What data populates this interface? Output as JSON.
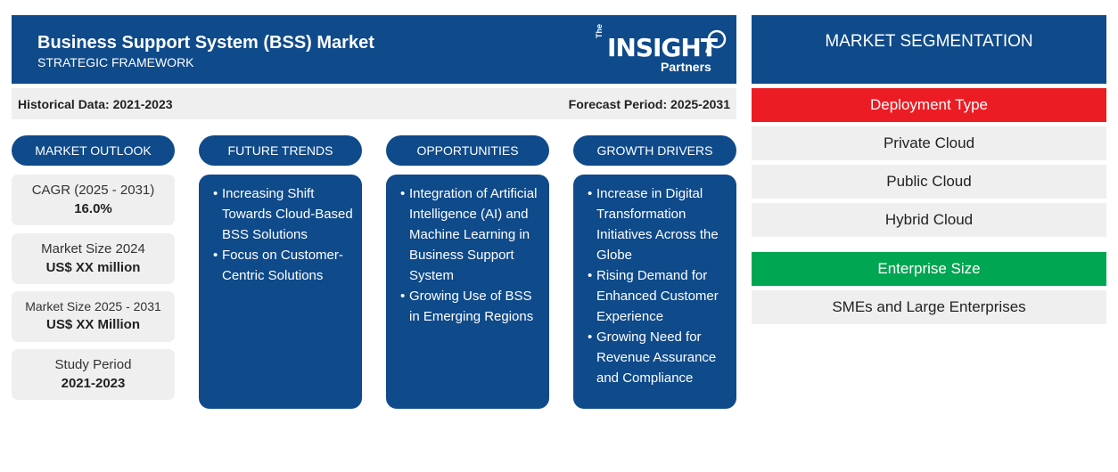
{
  "header": {
    "title": "Business Support System (BSS) Market",
    "subtitle": "STRATEGIC FRAMEWORK",
    "logo": {
      "the": "The",
      "insight": "INSIGHT",
      "partners": "Partners"
    }
  },
  "periods": {
    "historical": "Historical Data: 2021-2023",
    "forecast": "Forecast Period: 2025-2031"
  },
  "columns": {
    "market_outlook": "MARKET OUTLOOK",
    "future_trends": "FUTURE TRENDS",
    "opportunities": "OPPORTUNITIES",
    "growth_drivers": "GROWTH DRIVERS"
  },
  "outlook": [
    {
      "label": "CAGR (2025 - 2031)",
      "value": "16.0%"
    },
    {
      "label": "Market Size 2024",
      "value": "US$ XX million"
    },
    {
      "label": "Market Size 2025 - 2031",
      "value": "US$ XX Million"
    },
    {
      "label": "Study Period",
      "value": "2021-2023"
    }
  ],
  "future_trends": [
    "Increasing Shift Towards Cloud-Based BSS Solutions",
    "Focus on Customer-Centric Solutions"
  ],
  "opportunities": [
    "Integration of Artificial Intelligence (AI) and Machine Learning in Business Support System",
    "Growing Use of BSS in Emerging Regions"
  ],
  "growth_drivers": [
    "Increase in Digital Transformation Initiatives Across the Globe",
    "Rising Demand for Enhanced Customer Experience",
    "Growing Need for Revenue Assurance and Compliance"
  ],
  "segmentation": {
    "title": "MARKET SEGMENTATION",
    "deployment_type": {
      "label": "Deployment Type",
      "color": "#ec1c24",
      "items": [
        "Private Cloud",
        "Public Cloud",
        "Hybrid Cloud"
      ]
    },
    "enterprise_size": {
      "label": "Enterprise Size",
      "color": "#00a651",
      "items": [
        "SMEs and Large Enterprises"
      ]
    }
  },
  "colors": {
    "primary": "#0f4a8a",
    "panel_gray": "#efefef"
  }
}
